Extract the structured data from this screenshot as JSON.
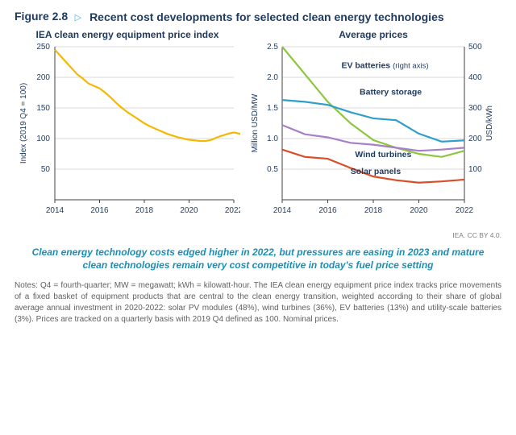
{
  "figure": {
    "number": "Figure 2.8",
    "marker": "▷",
    "title": "Recent cost developments for selected clean energy technologies"
  },
  "left_chart": {
    "type": "line",
    "title": "IEA clean energy equipment price index",
    "ylabel": "Index (2019 Q4 = 100)",
    "xlim": [
      2014,
      2022
    ],
    "ylim": [
      0,
      250
    ],
    "xtick_step": 2,
    "ytick_step": 50,
    "grid_color": "#d9d9d9",
    "axis_color": "#404040",
    "background_color": "#ffffff",
    "label_fontsize": 10,
    "series": {
      "name": "index",
      "color": "#f5b800",
      "line_width": 2.2,
      "points": [
        [
          2014,
          245
        ],
        [
          2014.25,
          235
        ],
        [
          2014.5,
          225
        ],
        [
          2014.75,
          215
        ],
        [
          2015,
          205
        ],
        [
          2015.25,
          198
        ],
        [
          2015.5,
          190
        ],
        [
          2015.75,
          186
        ],
        [
          2016,
          182
        ],
        [
          2016.25,
          175
        ],
        [
          2016.5,
          167
        ],
        [
          2016.75,
          158
        ],
        [
          2017,
          150
        ],
        [
          2017.25,
          143
        ],
        [
          2017.5,
          137
        ],
        [
          2017.75,
          131
        ],
        [
          2018,
          125
        ],
        [
          2018.25,
          120
        ],
        [
          2018.5,
          116
        ],
        [
          2018.75,
          112
        ],
        [
          2019,
          108
        ],
        [
          2019.25,
          105
        ],
        [
          2019.5,
          102
        ],
        [
          2019.75,
          100
        ],
        [
          2020,
          98
        ],
        [
          2020.25,
          97
        ],
        [
          2020.5,
          96
        ],
        [
          2020.75,
          96
        ],
        [
          2021,
          98
        ],
        [
          2021.25,
          102
        ],
        [
          2021.5,
          105
        ],
        [
          2021.75,
          108
        ],
        [
          2022,
          110
        ],
        [
          2022.25,
          108
        ],
        [
          2022.5,
          107
        ],
        [
          2022.75,
          109
        ]
      ]
    }
  },
  "right_chart": {
    "type": "line",
    "title": "Average prices",
    "ylabel_left": "Million USD/MW",
    "ylabel_right": "USD/kWh",
    "xlim": [
      2014,
      2022
    ],
    "ylim_left": [
      0,
      2.5
    ],
    "ylim_right": [
      0,
      500
    ],
    "xtick_step": 2,
    "ytick_step_left": 0.5,
    "ytick_step_right": 100,
    "grid_color": "#d9d9d9",
    "axis_color": "#404040",
    "background_color": "#ffffff",
    "label_fontsize": 10,
    "series": [
      {
        "name": "EV batteries",
        "axis": "right",
        "label": "EV batteries",
        "label_suffix": "(right axis)",
        "label_xy": [
          2016.6,
          2.15
        ],
        "color": "#8cc63f",
        "line_width": 2.2,
        "points": [
          [
            2014,
            500
          ],
          [
            2015,
            410
          ],
          [
            2016,
            320
          ],
          [
            2017,
            250
          ],
          [
            2018,
            195
          ],
          [
            2019,
            170
          ],
          [
            2020,
            150
          ],
          [
            2021,
            140
          ],
          [
            2022,
            160
          ]
        ]
      },
      {
        "name": "Battery storage",
        "axis": "left",
        "label": "Battery storage",
        "label_xy": [
          2017.4,
          1.72
        ],
        "color": "#2d9fc9",
        "line_width": 2.2,
        "points": [
          [
            2014,
            1.63
          ],
          [
            2015,
            1.6
          ],
          [
            2016,
            1.55
          ],
          [
            2017,
            1.43
          ],
          [
            2018,
            1.33
          ],
          [
            2019,
            1.3
          ],
          [
            2020,
            1.08
          ],
          [
            2021,
            0.95
          ],
          [
            2022,
            0.97
          ]
        ]
      },
      {
        "name": "Wind turbines",
        "axis": "left",
        "label": "Wind turbines",
        "label_xy": [
          2017.2,
          0.7
        ],
        "color": "#a77fc9",
        "line_width": 2.2,
        "points": [
          [
            2014,
            1.22
          ],
          [
            2015,
            1.07
          ],
          [
            2016,
            1.02
          ],
          [
            2017,
            0.93
          ],
          [
            2018,
            0.9
          ],
          [
            2019,
            0.85
          ],
          [
            2020,
            0.8
          ],
          [
            2021,
            0.82
          ],
          [
            2022,
            0.85
          ]
        ]
      },
      {
        "name": "Solar panels",
        "axis": "left",
        "label": "Solar panels",
        "label_xy": [
          2017.0,
          0.42
        ],
        "color": "#d94e2a",
        "line_width": 2.2,
        "points": [
          [
            2014,
            0.82
          ],
          [
            2015,
            0.7
          ],
          [
            2016,
            0.67
          ],
          [
            2017,
            0.52
          ],
          [
            2018,
            0.38
          ],
          [
            2019,
            0.32
          ],
          [
            2020,
            0.28
          ],
          [
            2021,
            0.3
          ],
          [
            2022,
            0.33
          ]
        ]
      }
    ]
  },
  "attribution": "IEA. CC BY 4.0.",
  "summary": "Clean energy technology costs edged higher in 2022, but pressures are easing in 2023 and mature clean technologies remain very cost competitive in today's fuel price setting",
  "notes": "Notes: Q4 = fourth-quarter; MW = megawatt; kWh = kilowatt-hour. The IEA clean energy equipment price index tracks price movements of a fixed basket of equipment products that are central to the clean energy transition, weighted according to their share of global average annual investment in 2020-2022: solar PV modules (48%), wind turbines (36%), EV batteries (13%) and utility-scale batteries (3%). Prices are tracked on a quarterly basis with 2019 Q4 defined as 100. Nominal prices."
}
